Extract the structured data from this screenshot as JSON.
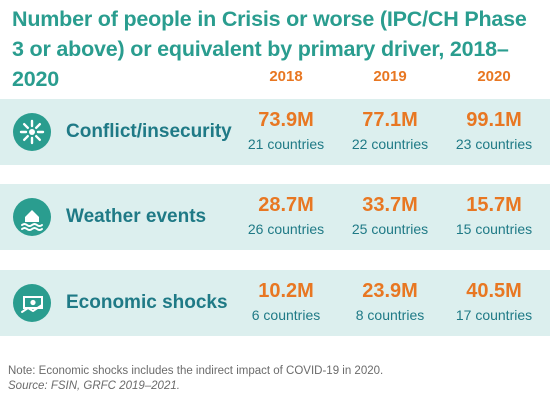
{
  "title": "Number of people in Crisis or worse (IPC/CH Phase 3 or above) or equivalent by primary driver, 2018–2020",
  "years": [
    "2018",
    "2019",
    "2020"
  ],
  "rows": [
    {
      "driver": "Conflict/insecurity",
      "icon": "conflict-icon",
      "values": [
        {
          "people": "73.9M",
          "countries": "21 countries"
        },
        {
          "people": "77.1M",
          "countries": "22 countries"
        },
        {
          "people": "99.1M",
          "countries": "23 countries"
        }
      ]
    },
    {
      "driver": "Weather events",
      "icon": "weather-flood-icon",
      "values": [
        {
          "people": "28.7M",
          "countries": "26 countries"
        },
        {
          "people": "33.7M",
          "countries": "25 countries"
        },
        {
          "people": "15.7M",
          "countries": "15 countries"
        }
      ]
    },
    {
      "driver": "Economic shocks",
      "icon": "economic-cash-icon",
      "values": [
        {
          "people": "10.2M",
          "countries": "6 countries"
        },
        {
          "people": "23.9M",
          "countries": "8 countries"
        },
        {
          "people": "40.5M",
          "countries": "17 countries"
        }
      ]
    }
  ],
  "note": "Note: Economic shocks includes the indirect impact of COVID-19 in 2020.",
  "source": "Source: FSIN, GRFC 2019–2021.",
  "colors": {
    "title": "#2a9d8f",
    "accent": "#e87722",
    "row_background": "#dcefee",
    "icon_background": "#2a9d8f",
    "label": "#1f7a86"
  }
}
